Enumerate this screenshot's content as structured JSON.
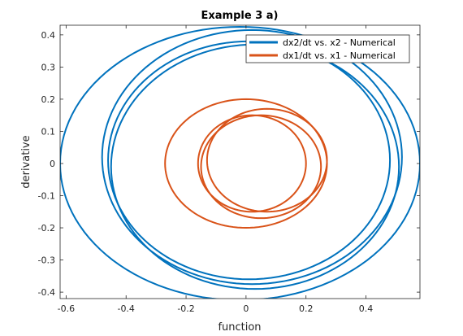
{
  "chart_data": {
    "type": "line",
    "title": "Example 3 a)",
    "xlabel": "function",
    "ylabel": "derivative",
    "xlim": [
      -0.62,
      0.58
    ],
    "ylim": [
      -0.42,
      0.43
    ],
    "xticks": [
      -0.6,
      -0.4,
      -0.2,
      0,
      0.2,
      0.4
    ],
    "xtick_labels": [
      "-0.6",
      "-0.4",
      "-0.2",
      "0",
      "0.2",
      "0.4"
    ],
    "yticks": [
      -0.4,
      -0.3,
      -0.2,
      -0.1,
      0,
      0.1,
      0.2,
      0.3,
      0.4
    ],
    "ytick_labels": [
      "-0.4",
      "-0.3",
      "-0.2",
      "-0.1",
      "0",
      "0.1",
      "0.2",
      "0.3",
      "0.4"
    ],
    "grid": false,
    "legend_position": "top-right",
    "series": [
      {
        "name": "dx2/dt vs. x2 - Numerical",
        "color": "#0072BD",
        "loops": [
          {
            "cx": -0.02,
            "cy": 0.0,
            "rx": 0.6,
            "ry": 0.425
          },
          {
            "cx": 0.02,
            "cy": 0.02,
            "rx": 0.5,
            "ry": 0.395
          },
          {
            "cx": 0.03,
            "cy": -0.01,
            "rx": 0.48,
            "ry": 0.38
          },
          {
            "cx": 0.01,
            "cy": 0.01,
            "rx": 0.47,
            "ry": 0.37
          }
        ]
      },
      {
        "name": "dx1/dt vs. x1 - Numerical",
        "color": "#D95319",
        "loops": [
          {
            "cx": 0.0,
            "cy": 0.0,
            "rx": 0.27,
            "ry": 0.2
          },
          {
            "cx": 0.07,
            "cy": 0.01,
            "rx": 0.2,
            "ry": 0.16
          },
          {
            "cx": 0.05,
            "cy": -0.01,
            "rx": 0.2,
            "ry": 0.16
          },
          {
            "cx": 0.02,
            "cy": 0.0,
            "rx": 0.18,
            "ry": 0.15
          }
        ]
      }
    ]
  }
}
